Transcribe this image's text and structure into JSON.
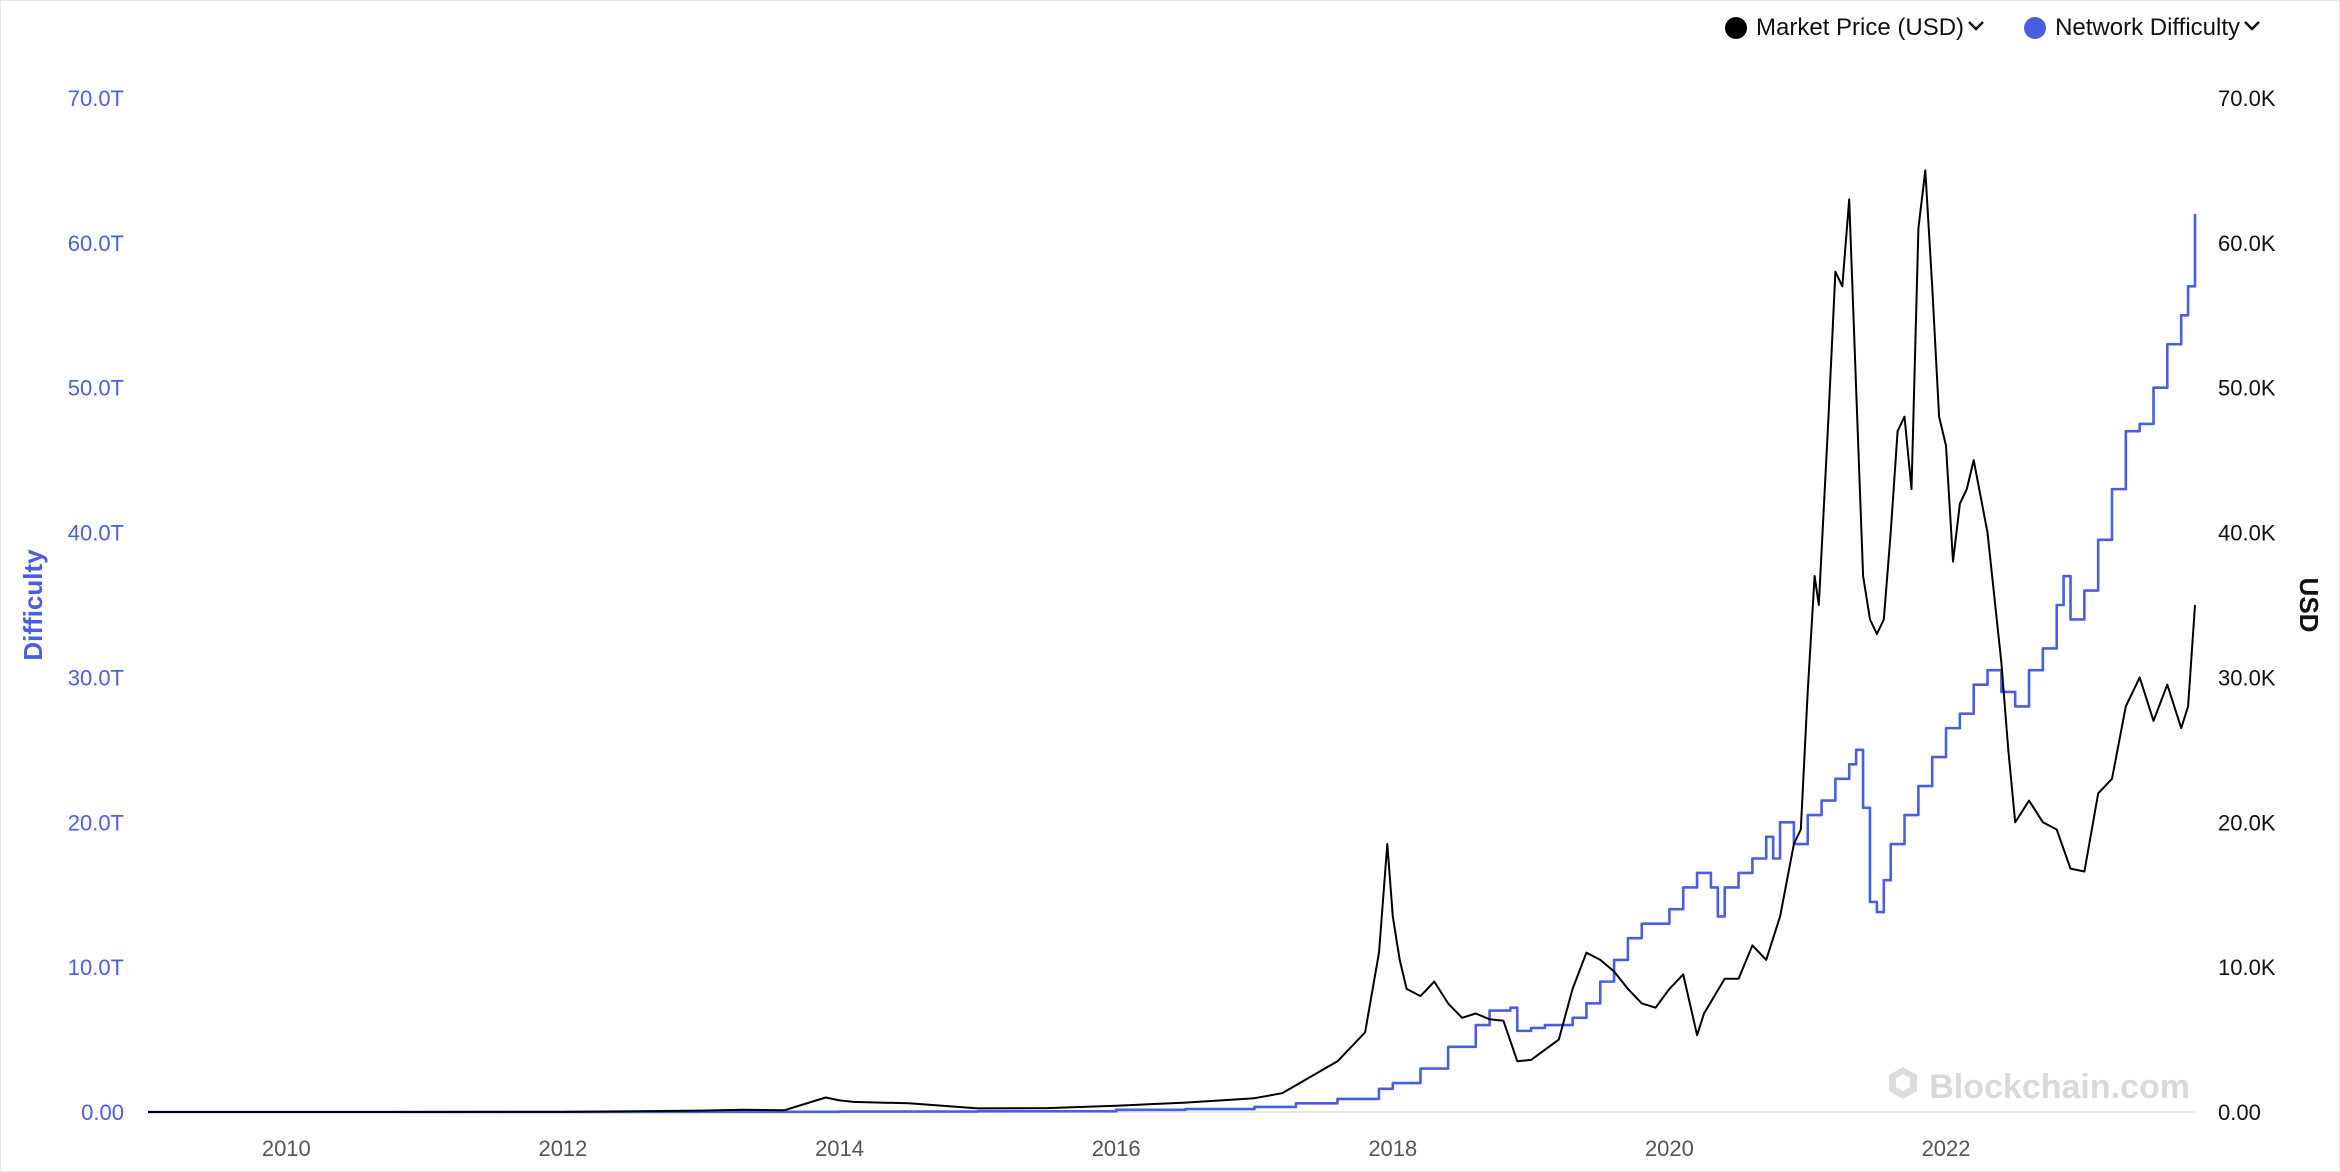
{
  "legend": {
    "items": [
      {
        "label": "Market Price (USD)",
        "color": "#000000"
      },
      {
        "label": "Network Difficulty",
        "color": "#4a5fe0"
      }
    ]
  },
  "watermark": "Blockchain.com",
  "icons": {
    "legend_toggle": "chevron-down-icon",
    "watermark_logo": "blockchain-logo-icon"
  },
  "colors": {
    "difficulty": "#4a5fe0",
    "price": "#000000",
    "axis": "#111111"
  },
  "chart_data": {
    "type": "line",
    "title": "",
    "left_axis": {
      "label": "Difficulty",
      "range": [
        0,
        70
      ],
      "unit": "T",
      "color": "#4a5fe0",
      "ticks": [
        "0.00",
        "10.0T",
        "20.0T",
        "30.0T",
        "40.0T",
        "50.0T",
        "60.0T",
        "70.0T"
      ]
    },
    "right_axis": {
      "label": "USD",
      "range": [
        0,
        70000
      ],
      "color": "#000000",
      "ticks": [
        "0.00",
        "10.0K",
        "20.0K",
        "30.0K",
        "40.0K",
        "50.0K",
        "60.0K",
        "70.0K"
      ]
    },
    "x_axis": {
      "range": [
        2009.0,
        2023.8
      ],
      "ticks": [
        "2010",
        "2012",
        "2014",
        "2016",
        "2018",
        "2020",
        "2022"
      ]
    },
    "grid": false,
    "legend_position": "top-right",
    "series": [
      {
        "name": "Market Price (USD)",
        "axis": "right",
        "color": "#000000",
        "x": [
          2009.0,
          2010.5,
          2012.0,
          2013.0,
          2013.3,
          2013.6,
          2013.9,
          2014.0,
          2014.1,
          2014.5,
          2015.0,
          2015.5,
          2016.0,
          2016.5,
          2017.0,
          2017.2,
          2017.4,
          2017.6,
          2017.8,
          2017.9,
          2017.96,
          2018.0,
          2018.05,
          2018.1,
          2018.2,
          2018.3,
          2018.4,
          2018.5,
          2018.6,
          2018.7,
          2018.8,
          2018.9,
          2019.0,
          2019.2,
          2019.3,
          2019.4,
          2019.5,
          2019.6,
          2019.7,
          2019.8,
          2019.9,
          2020.0,
          2020.1,
          2020.2,
          2020.25,
          2020.4,
          2020.5,
          2020.6,
          2020.7,
          2020.8,
          2020.9,
          2020.95,
          2021.0,
          2021.05,
          2021.08,
          2021.15,
          2021.2,
          2021.25,
          2021.3,
          2021.35,
          2021.4,
          2021.45,
          2021.5,
          2021.55,
          2021.6,
          2021.65,
          2021.7,
          2021.75,
          2021.8,
          2021.85,
          2021.9,
          2021.95,
          2022.0,
          2022.05,
          2022.1,
          2022.15,
          2022.2,
          2022.3,
          2022.4,
          2022.45,
          2022.5,
          2022.6,
          2022.7,
          2022.8,
          2022.9,
          2023.0,
          2023.1,
          2023.2,
          2023.3,
          2023.4,
          2023.5,
          2023.6,
          2023.7,
          2023.75,
          2023.8
        ],
        "values": [
          0,
          0,
          5,
          100,
          150,
          120,
          1000,
          800,
          700,
          600,
          250,
          270,
          430,
          650,
          950,
          1300,
          2400,
          3500,
          5500,
          11000,
          18500,
          13500,
          10500,
          8500,
          8000,
          9000,
          7500,
          6500,
          6800,
          6400,
          6300,
          3500,
          3600,
          5000,
          8500,
          11000,
          10500,
          9700,
          8500,
          7500,
          7200,
          8500,
          9500,
          5300,
          6800,
          9200,
          9200,
          11500,
          10500,
          13500,
          18500,
          19500,
          29000,
          37000,
          35000,
          48000,
          58000,
          57000,
          63000,
          50000,
          37000,
          34000,
          33000,
          34000,
          40000,
          47000,
          48000,
          43000,
          61000,
          65000,
          57000,
          48000,
          46000,
          38000,
          42000,
          43000,
          45000,
          40000,
          31000,
          25000,
          20000,
          21500,
          20000,
          19500,
          16800,
          16600,
          22000,
          23000,
          28000,
          30000,
          27000,
          29500,
          26500,
          28000,
          35000
        ]
      },
      {
        "name": "Network Difficulty",
        "axis": "left",
        "color": "#4a5fe0",
        "x": [
          2009.0,
          2012.0,
          2013.0,
          2014.0,
          2015.0,
          2016.0,
          2016.5,
          2017.0,
          2017.3,
          2017.6,
          2017.9,
          2018.0,
          2018.2,
          2018.4,
          2018.6,
          2018.7,
          2018.85,
          2018.9,
          2019.0,
          2019.1,
          2019.3,
          2019.4,
          2019.5,
          2019.6,
          2019.7,
          2019.8,
          2019.9,
          2020.0,
          2020.1,
          2020.2,
          2020.3,
          2020.35,
          2020.4,
          2020.5,
          2020.6,
          2020.7,
          2020.75,
          2020.8,
          2020.9,
          2021.0,
          2021.1,
          2021.2,
          2021.3,
          2021.35,
          2021.4,
          2021.45,
          2021.5,
          2021.55,
          2021.6,
          2021.7,
          2021.8,
          2021.9,
          2022.0,
          2022.1,
          2022.2,
          2022.3,
          2022.4,
          2022.5,
          2022.6,
          2022.7,
          2022.8,
          2022.85,
          2022.9,
          2023.0,
          2023.1,
          2023.2,
          2023.3,
          2023.4,
          2023.5,
          2023.6,
          2023.7,
          2023.75,
          2023.8
        ],
        "values": [
          0,
          0.002,
          0.01,
          0.03,
          0.05,
          0.15,
          0.2,
          0.35,
          0.6,
          0.9,
          1.6,
          2.0,
          3.0,
          4.5,
          6.0,
          7.0,
          7.2,
          5.6,
          5.8,
          6.0,
          6.5,
          7.5,
          9.0,
          10.5,
          12.0,
          13.0,
          13.0,
          14.0,
          15.5,
          16.5,
          15.5,
          13.5,
          15.5,
          16.5,
          17.5,
          19.0,
          17.5,
          20.0,
          18.5,
          20.5,
          21.5,
          23.0,
          24.0,
          25.0,
          21.0,
          14.5,
          13.8,
          16.0,
          18.5,
          20.5,
          22.5,
          24.5,
          26.5,
          27.5,
          29.5,
          30.5,
          29.0,
          28.0,
          30.5,
          32.0,
          35.0,
          37.0,
          34.0,
          36.0,
          39.5,
          43.0,
          47.0,
          47.5,
          50.0,
          53.0,
          55.0,
          57.0,
          62.0
        ]
      }
    ]
  }
}
